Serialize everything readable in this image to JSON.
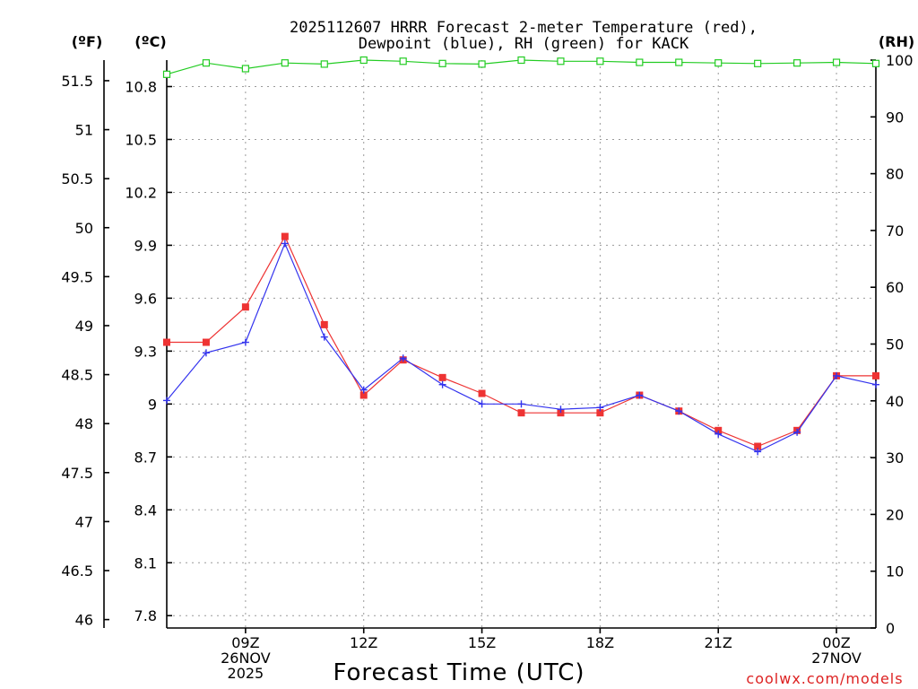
{
  "chart_data": {
    "type": "line",
    "title_line1": "2025112607 HRRR Forecast 2-meter Temperature (red),",
    "title_line2": "Dewpoint (blue), RH (green) for KACK",
    "xlabel": "Forecast Time (UTC)",
    "units": {
      "fahrenheit": "(ºF)",
      "celsius": "(ºC)",
      "rh": "(RH)"
    },
    "x_hours": [
      7,
      8,
      9,
      10,
      11,
      12,
      13,
      14,
      15,
      16,
      17,
      18,
      19,
      20,
      21,
      22,
      23,
      24,
      25
    ],
    "xlim": [
      7,
      25
    ],
    "x_ticks": [
      {
        "hour": 9,
        "lines": [
          "09Z",
          "26NOV",
          "2025"
        ]
      },
      {
        "hour": 12,
        "lines": [
          "12Z"
        ]
      },
      {
        "hour": 15,
        "lines": [
          "15Z"
        ]
      },
      {
        "hour": 18,
        "lines": [
          "18Z"
        ]
      },
      {
        "hour": 21,
        "lines": [
          "21Z"
        ]
      },
      {
        "hour": 24,
        "lines": [
          "00Z",
          "27NOV"
        ]
      }
    ],
    "celsius_axis": {
      "ylim": [
        7.73,
        10.95
      ],
      "ticks": [
        "7.8",
        "8.1",
        "8.4",
        "8.7",
        "9",
        "9.3",
        "9.6",
        "9.9",
        "10.2",
        "10.5",
        "10.8"
      ]
    },
    "fahrenheit_axis": {
      "ticks": [
        "46",
        "46.5",
        "47",
        "47.5",
        "48",
        "48.5",
        "49",
        "49.5",
        "50",
        "50.5",
        "51",
        "51.5"
      ]
    },
    "rh_axis": {
      "ylim": [
        0,
        100
      ],
      "ticks": [
        "0",
        "10",
        "20",
        "30",
        "40",
        "50",
        "60",
        "70",
        "80",
        "90",
        "100"
      ]
    },
    "series": [
      {
        "name": "Temperature",
        "axis": "celsius",
        "color": "#ee3333",
        "marker": "square-filled",
        "values": [
          9.35,
          9.35,
          9.55,
          9.95,
          9.45,
          9.05,
          9.25,
          9.15,
          9.06,
          8.95,
          8.95,
          8.95,
          9.05,
          8.96,
          8.85,
          8.76,
          8.85,
          9.16,
          9.16
        ]
      },
      {
        "name": "Dewpoint",
        "axis": "celsius",
        "color": "#3333ee",
        "marker": "plus",
        "values": [
          9.02,
          9.29,
          9.35,
          9.91,
          9.38,
          9.08,
          9.26,
          9.11,
          9.0,
          9.0,
          8.97,
          8.98,
          9.05,
          8.96,
          8.83,
          8.73,
          8.84,
          9.16,
          9.11
        ]
      },
      {
        "name": "RH",
        "axis": "rh",
        "color": "#22cc22",
        "marker": "square-open",
        "values": [
          97.5,
          99.5,
          98.5,
          99.5,
          99.3,
          100,
          99.8,
          99.4,
          99.3,
          100,
          99.8,
          99.8,
          99.6,
          99.6,
          99.5,
          99.4,
          99.5,
          99.6,
          99.4
        ]
      }
    ],
    "credit": "coolwx.com/models",
    "credit_color": "#dd2222"
  }
}
